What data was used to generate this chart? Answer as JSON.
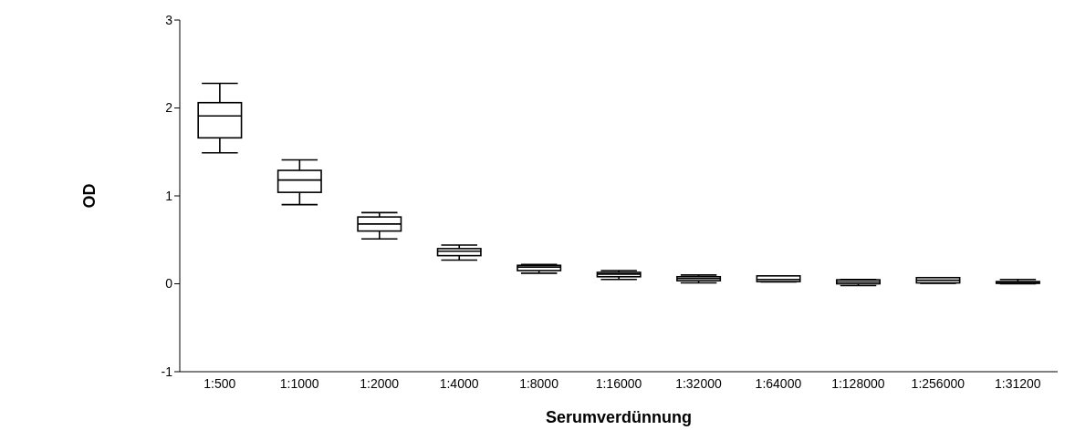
{
  "chart_data": {
    "type": "box",
    "xlabel": "Serumverdünnung",
    "ylabel": "OD",
    "categories": [
      "1:500",
      "1:1000",
      "1:2000",
      "1:4000",
      "1:8000",
      "1:16000",
      "1:32000",
      "1:64000",
      "1:128000",
      "1:256000",
      "1:31200"
    ],
    "boxes": [
      {
        "low": 1.49,
        "q1": 1.66,
        "median": 1.91,
        "q3": 2.06,
        "high": 2.28
      },
      {
        "low": 0.9,
        "q1": 1.04,
        "median": 1.18,
        "q3": 1.29,
        "high": 1.41
      },
      {
        "low": 0.51,
        "q1": 0.6,
        "median": 0.68,
        "q3": 0.76,
        "high": 0.81
      },
      {
        "low": 0.27,
        "q1": 0.32,
        "median": 0.37,
        "q3": 0.4,
        "high": 0.44
      },
      {
        "low": 0.12,
        "q1": 0.15,
        "median": 0.19,
        "q3": 0.21,
        "high": 0.22
      },
      {
        "low": 0.05,
        "q1": 0.08,
        "median": 0.11,
        "q3": 0.13,
        "high": 0.15
      },
      {
        "low": 0.01,
        "q1": 0.035,
        "median": 0.06,
        "q3": 0.08,
        "high": 0.1
      },
      {
        "low": 0.02,
        "q1": 0.025,
        "median": 0.05,
        "q3": 0.09,
        "high": 0.09
      },
      {
        "low": -0.02,
        "q1": 0.0,
        "median": 0.02,
        "q3": 0.045,
        "high": 0.05
      },
      {
        "low": 0.005,
        "q1": 0.01,
        "median": 0.04,
        "q3": 0.07,
        "high": 0.07
      },
      {
        "low": 0.0,
        "q1": 0.005,
        "median": 0.015,
        "q3": 0.025,
        "high": 0.05
      }
    ],
    "ylim": [
      -1,
      3
    ],
    "yticks": [
      -1,
      0,
      1,
      2,
      3
    ]
  }
}
